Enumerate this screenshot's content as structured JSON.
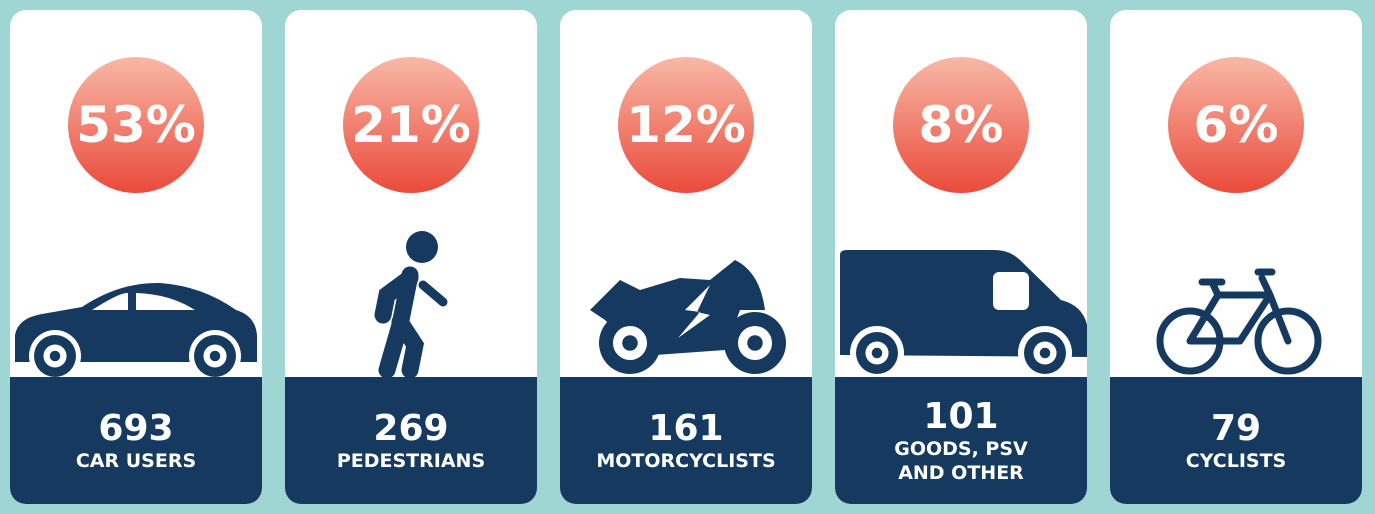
{
  "cards": [
    {
      "percent": "53%",
      "count": 693,
      "label": "CAR USERS"
    },
    {
      "percent": "21%",
      "count": 269,
      "label": "PEDESTRIANS"
    },
    {
      "percent": "12%",
      "count": 161,
      "label": "MOTORCYCLISTS"
    },
    {
      "percent": "8%",
      "count": 101,
      "label": "GOODS, PSV AND OTHER"
    },
    {
      "percent": "6%",
      "count": 79,
      "label": "CYCLISTS"
    }
  ]
}
